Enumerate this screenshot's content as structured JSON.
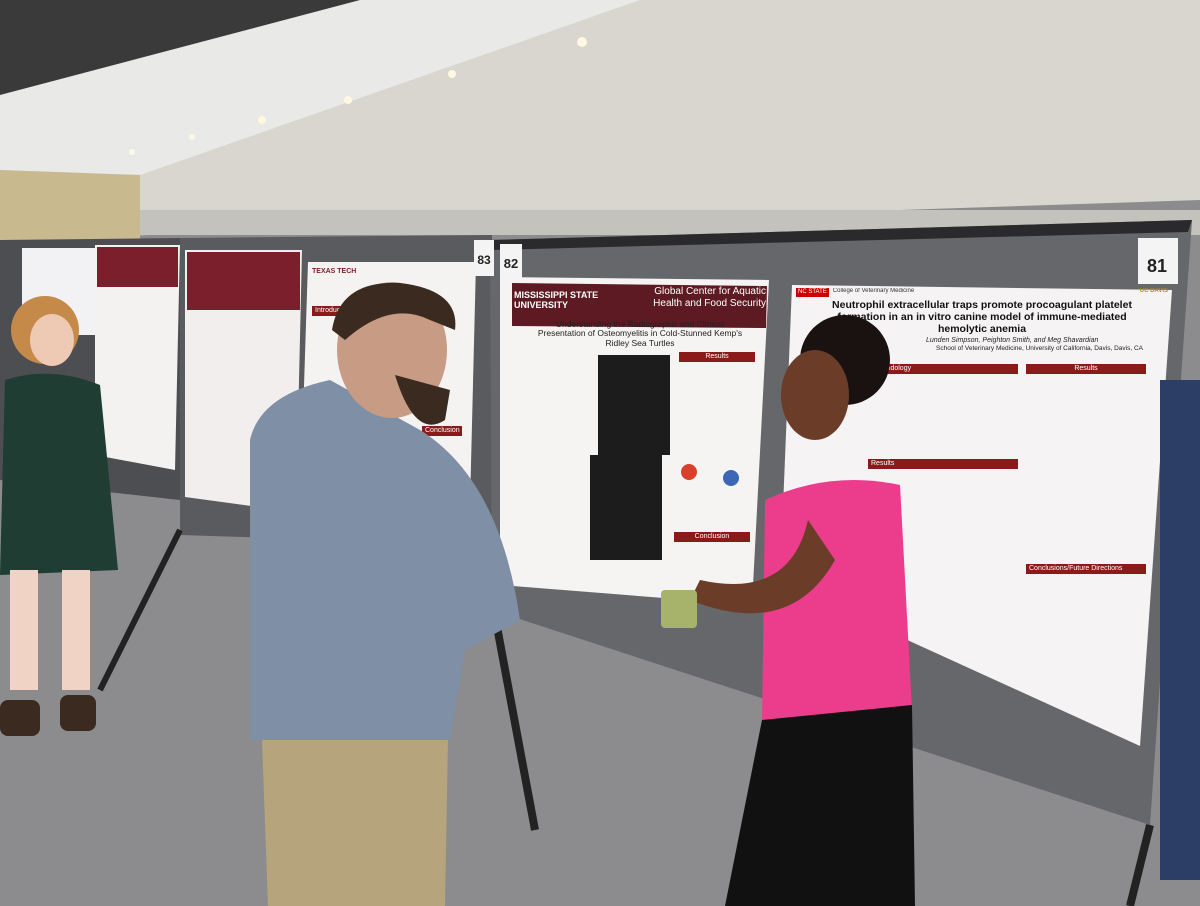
{
  "posters": [
    {
      "number": "83",
      "institution": "TEXAS TECH",
      "sections": [
        "Introduction",
        "Conclusion"
      ]
    },
    {
      "number": "82",
      "institution": "MISSISSIPPI STATE UNIVERSITY",
      "center": "Global Center for Aquatic Health and Food Security",
      "title": "Understanding the Radiographic and Clinical Presentation of Osteomyelitis in Cold-Stunned Kemp's Ridley Sea Turtles",
      "sections": [
        "Results",
        "Conclusion"
      ]
    },
    {
      "number": "81",
      "institution": "NC STATE",
      "college": "College of Veterinary Medicine",
      "title": "Neutrophil extracellular traps promote procoagulant platelet formation in an in vitro canine model of immune-mediated hemolytic anemia",
      "authors": "Lunden Simpson, Peighton Smith, and Meg Shavardian",
      "affiliation": "School of Veterinary Medicine, University of California, Davis, Davis, CA",
      "logo": "UC DAVIS",
      "sections": [
        "Methodology",
        "Results",
        "Results",
        "Conclusions/Future Directions"
      ]
    }
  ]
}
